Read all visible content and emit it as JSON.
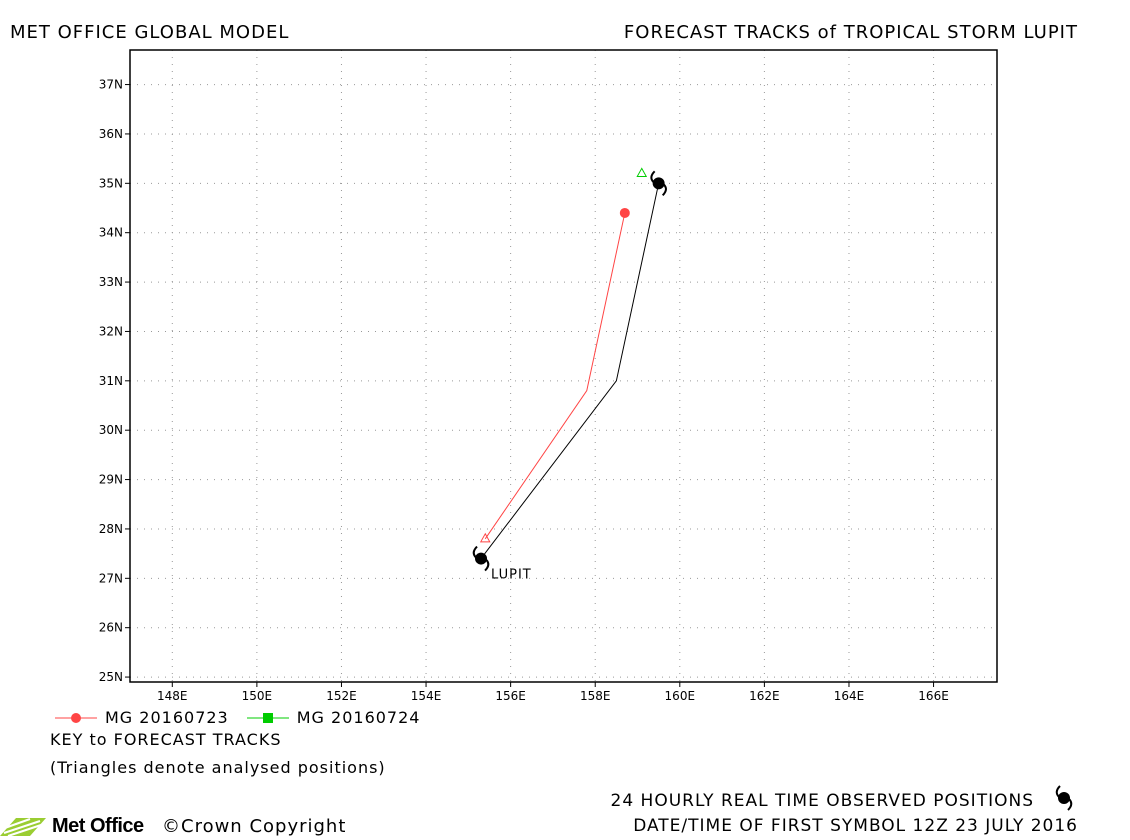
{
  "header": {
    "left_title": "MET OFFICE GLOBAL MODEL",
    "right_title": "FORECAST TRACKS of TROPICAL STORM LUPIT"
  },
  "chart_data": {
    "type": "line",
    "title": "FORECAST TRACKS of TROPICAL STORM LUPIT",
    "xlabel": "",
    "ylabel": "",
    "xlim": [
      147.0,
      167.5
    ],
    "ylim": [
      24.9,
      37.7
    ],
    "x_ticks": [
      148,
      150,
      152,
      154,
      156,
      158,
      160,
      162,
      164,
      166
    ],
    "x_tick_labels": [
      "148E",
      "150E",
      "152E",
      "154E",
      "156E",
      "158E",
      "160E",
      "162E",
      "164E",
      "166E"
    ],
    "y_ticks": [
      25,
      26,
      27,
      28,
      29,
      30,
      31,
      32,
      33,
      34,
      35,
      36,
      37
    ],
    "y_tick_labels": [
      "25N",
      "26N",
      "27N",
      "28N",
      "29N",
      "30N",
      "31N",
      "32N",
      "33N",
      "34N",
      "35N",
      "36N",
      "37N"
    ],
    "grid": true,
    "series": [
      {
        "name": "MG 20160723",
        "color": "#ff4444",
        "points": [
          [
            155.4,
            27.8
          ],
          [
            157.8,
            30.8
          ],
          [
            158.7,
            34.4
          ]
        ],
        "start_marker": "triangle",
        "end_marker": "circle"
      },
      {
        "name": "MG 20160724",
        "color": "#00cc00",
        "points": [
          [
            159.1,
            35.2
          ]
        ],
        "start_marker": "triangle"
      },
      {
        "name": "observed",
        "color": "#000000",
        "points": [
          [
            155.3,
            27.4
          ],
          [
            158.5,
            31.0
          ],
          [
            159.5,
            35.0
          ]
        ],
        "storm_symbols": [
          [
            155.3,
            27.4
          ],
          [
            159.5,
            35.0
          ]
        ]
      }
    ],
    "storm_label": {
      "text": "LUPIT",
      "x": 155.3,
      "y": 27.4
    }
  },
  "legend": {
    "items": [
      {
        "label": "MG 20160723",
        "color": "#ff4444",
        "marker": "circle"
      },
      {
        "label": "MG 20160724",
        "color": "#00cc00",
        "marker": "square"
      }
    ]
  },
  "key": {
    "title": "KEY to FORECAST TRACKS",
    "note": "(Triangles denote analysed positions)"
  },
  "footer": {
    "observed": "24 HOURLY REAL TIME OBSERVED POSITIONS",
    "datetime": "DATE/TIME OF FIRST SYMBOL 12Z 23 JULY 2016",
    "copyright": "©Crown Copyright",
    "logo_text": "Met Office",
    "logo_color": "#9acd32"
  }
}
